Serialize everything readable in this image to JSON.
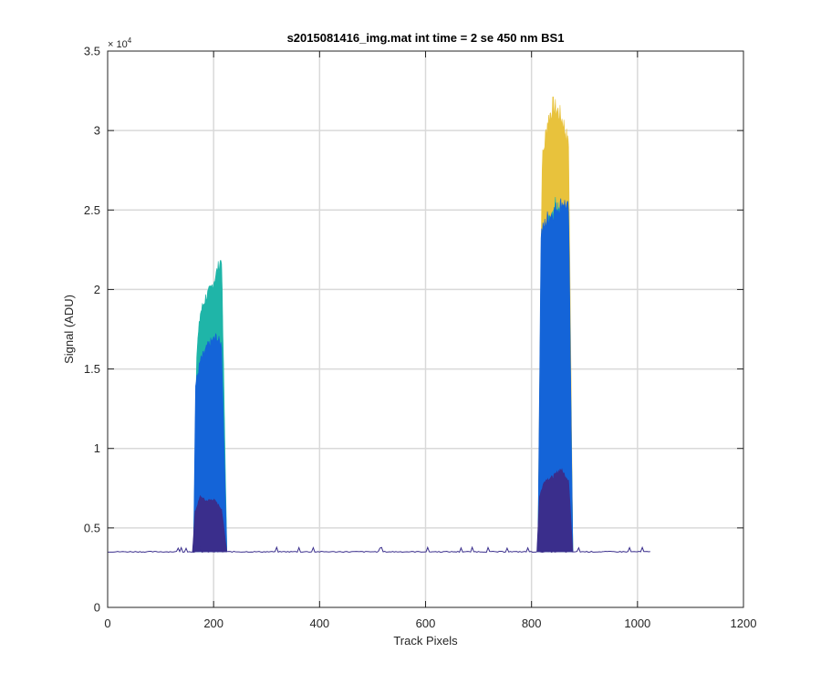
{
  "chart_data": {
    "type": "area",
    "title": "s2015081416_img.mat int time = 2 se  450 nm BS1",
    "xlabel": "Track Pixels",
    "ylabel": "Signal (ADU)",
    "y_exponent_label": "× 10",
    "y_exponent_power": "4",
    "xlim": [
      0,
      1200
    ],
    "ylim": [
      0,
      35000
    ],
    "x_ticks": [
      0,
      200,
      400,
      600,
      800,
      1000,
      1200
    ],
    "y_ticks": [
      0,
      5000,
      10000,
      15000,
      20000,
      25000,
      30000,
      35000
    ],
    "x_tick_labels": [
      "0",
      "200",
      "400",
      "600",
      "800",
      "1000",
      "1200"
    ],
    "y_tick_labels": [
      "0",
      "0.5",
      "1",
      "1.5",
      "2",
      "2.5",
      "3",
      "3.5"
    ],
    "grid": true,
    "baseline": 3500,
    "x_range": [
      1,
      1024
    ],
    "series": [
      {
        "color": "#e8c23c",
        "peaks": [
          {
            "x": [
              812,
              820,
              830,
              840,
              850,
              860,
              870,
              878
            ],
            "y": [
              3500,
              28000,
              30500,
              31500,
              31200,
              30500,
              29000,
              3500
            ]
          }
        ]
      },
      {
        "color": "#1fb5a8",
        "peaks": [
          {
            "x": [
              162,
              168,
              175,
              185,
              195,
              205,
              215,
              225
            ],
            "y": [
              3500,
              16000,
              18500,
              19500,
              20000,
              21000,
              22000,
              3500
            ]
          },
          {
            "x": [
              812,
              818,
              830,
              845,
              860,
              870,
              878
            ],
            "y": [
              3500,
              18000,
              24000,
              25500,
              25000,
              24000,
              3500
            ]
          }
        ]
      },
      {
        "color": "#1464d8",
        "peaks": [
          {
            "x": [
              162,
              166,
              175,
              190,
              205,
              215,
              225
            ],
            "y": [
              3500,
              14000,
              15500,
              16500,
              17000,
              16500,
              3500
            ]
          },
          {
            "x": [
              812,
              818,
              830,
              845,
              860,
              870,
              878
            ],
            "y": [
              3500,
              23500,
              24500,
              25000,
              25500,
              25000,
              3500
            ]
          }
        ]
      },
      {
        "color": "#3a2e8c",
        "peaks": [
          {
            "x": [
              160,
              165,
              175,
              185,
              200,
              215,
              225
            ],
            "y": [
              3500,
              6000,
              7000,
              6700,
              6800,
              6200,
              3500
            ]
          },
          {
            "x": [
              810,
              815,
              825,
              840,
              855,
              870,
              878
            ],
            "y": [
              3500,
              7000,
              8000,
              8200,
              8700,
              8000,
              3500
            ]
          }
        ]
      }
    ]
  }
}
